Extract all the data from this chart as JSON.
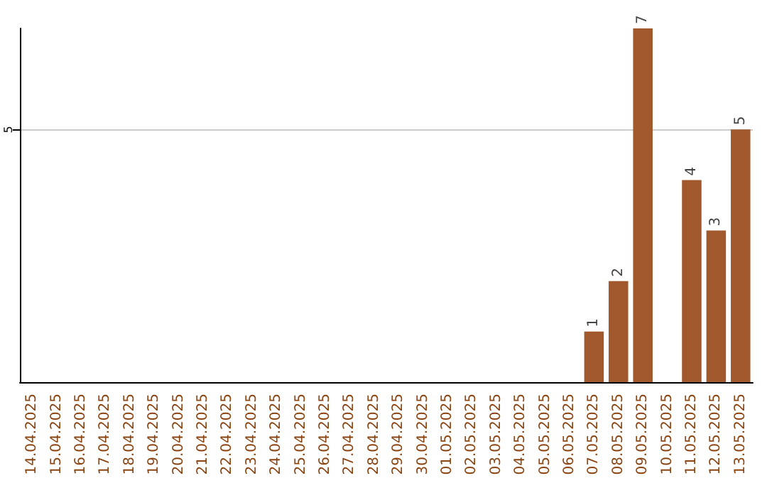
{
  "chart_data": {
    "type": "bar",
    "categories": [
      "14.04.2025",
      "15.04.2025",
      "16.04.2025",
      "17.04.2025",
      "18.04.2025",
      "19.04.2025",
      "20.04.2025",
      "21.04.2025",
      "22.04.2025",
      "23.04.2025",
      "24.04.2025",
      "25.04.2025",
      "26.04.2025",
      "27.04.2025",
      "28.04.2025",
      "29.04.2025",
      "30.04.2025",
      "01.05.2025",
      "02.05.2025",
      "03.05.2025",
      "04.05.2025",
      "05.05.2025",
      "06.05.2025",
      "07.05.2025",
      "08.05.2025",
      "09.05.2025",
      "10.05.2025",
      "11.05.2025",
      "12.05.2025",
      "13.05.2025"
    ],
    "values": [
      null,
      null,
      null,
      null,
      null,
      null,
      null,
      null,
      null,
      null,
      null,
      null,
      null,
      null,
      null,
      null,
      null,
      null,
      null,
      null,
      null,
      null,
      null,
      1,
      2,
      7,
      null,
      4,
      3,
      5
    ],
    "data_labels": true,
    "color": "#a0582c",
    "ylim": [
      0,
      7
    ],
    "yticks": [
      5
    ],
    "grid": "y"
  }
}
